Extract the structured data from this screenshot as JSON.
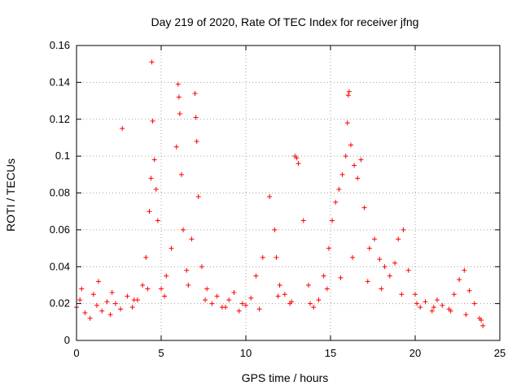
{
  "chart_data": {
    "type": "scatter",
    "title": "Day 219 of 2020, Rate Of TEC Index for receiver jfng",
    "xlabel": "GPS time / hours",
    "ylabel": "ROTI / TECUs",
    "xlim": [
      0,
      25
    ],
    "ylim": [
      0,
      0.16
    ],
    "xticks": [
      0,
      5,
      10,
      15,
      20,
      25
    ],
    "yticks": [
      0,
      0.02,
      0.04,
      0.06,
      0.08,
      0.1,
      0.12,
      0.14,
      0.16
    ],
    "xtick_labels": [
      "0",
      "5",
      "10",
      "15",
      "20",
      "25"
    ],
    "ytick_labels": [
      "0",
      "0.02",
      "0.04",
      "0.06",
      "0.08",
      "0.1",
      "0.12",
      "0.14",
      "0.16"
    ],
    "grid": true,
    "marker": "+",
    "marker_color": "#ff0000",
    "series": [
      {
        "name": "ROTI",
        "x": [
          0.0,
          0.2,
          0.5,
          0.8,
          1.0,
          1.2,
          1.5,
          1.8,
          2.0,
          2.3,
          2.6,
          2.7,
          3.0,
          3.3,
          3.6,
          3.9,
          4.1,
          4.3,
          4.4,
          4.45,
          4.5,
          4.6,
          4.7,
          4.8,
          5.0,
          5.3,
          5.6,
          5.9,
          6.0,
          6.05,
          6.1,
          6.2,
          6.3,
          6.5,
          6.8,
          7.0,
          7.05,
          7.1,
          7.2,
          7.4,
          7.7,
          8.0,
          8.3,
          8.6,
          9.0,
          9.3,
          9.6,
          10.0,
          10.3,
          10.6,
          11.0,
          11.4,
          11.7,
          11.8,
          12.0,
          12.3,
          12.6,
          12.9,
          13.0,
          13.1,
          13.4,
          13.7,
          14.0,
          14.3,
          14.6,
          14.9,
          15.1,
          15.3,
          15.5,
          15.7,
          15.9,
          16.0,
          16.05,
          16.1,
          16.2,
          16.4,
          16.6,
          16.8,
          17.0,
          17.3,
          17.6,
          17.9,
          18.2,
          18.5,
          18.8,
          19.0,
          19.3,
          19.6,
          20.0,
          20.3,
          20.6,
          21.0,
          21.3,
          21.6,
          22.0,
          22.3,
          22.6,
          22.9,
          23.2,
          23.5,
          23.8,
          24.0,
          0.3,
          1.3,
          2.1,
          3.4,
          4.2,
          5.2,
          6.6,
          7.6,
          8.8,
          9.8,
          10.8,
          11.9,
          12.7,
          13.8,
          14.8,
          15.6,
          16.3,
          17.2,
          18.0,
          19.2,
          20.1,
          21.1,
          22.1,
          23.0,
          23.9
        ],
        "y": [
          0.018,
          0.022,
          0.015,
          0.012,
          0.025,
          0.019,
          0.016,
          0.021,
          0.014,
          0.02,
          0.017,
          0.115,
          0.024,
          0.018,
          0.022,
          0.03,
          0.045,
          0.07,
          0.088,
          0.151,
          0.119,
          0.098,
          0.082,
          0.065,
          0.028,
          0.035,
          0.05,
          0.105,
          0.139,
          0.132,
          0.123,
          0.09,
          0.06,
          0.038,
          0.055,
          0.134,
          0.121,
          0.108,
          0.078,
          0.04,
          0.028,
          0.02,
          0.024,
          0.018,
          0.022,
          0.026,
          0.016,
          0.019,
          0.023,
          0.035,
          0.045,
          0.078,
          0.06,
          0.045,
          0.03,
          0.025,
          0.02,
          0.1,
          0.099,
          0.096,
          0.065,
          0.03,
          0.018,
          0.022,
          0.035,
          0.05,
          0.065,
          0.075,
          0.082,
          0.09,
          0.1,
          0.118,
          0.133,
          0.135,
          0.106,
          0.095,
          0.088,
          0.098,
          0.072,
          0.05,
          0.055,
          0.044,
          0.04,
          0.035,
          0.042,
          0.055,
          0.06,
          0.038,
          0.025,
          0.018,
          0.021,
          0.016,
          0.022,
          0.019,
          0.017,
          0.025,
          0.033,
          0.038,
          0.027,
          0.02,
          0.012,
          0.008,
          0.028,
          0.032,
          0.026,
          0.022,
          0.028,
          0.024,
          0.03,
          0.022,
          0.018,
          0.02,
          0.017,
          0.024,
          0.021,
          0.02,
          0.028,
          0.034,
          0.045,
          0.032,
          0.028,
          0.025,
          0.02,
          0.018,
          0.016,
          0.014,
          0.011
        ]
      }
    ]
  }
}
